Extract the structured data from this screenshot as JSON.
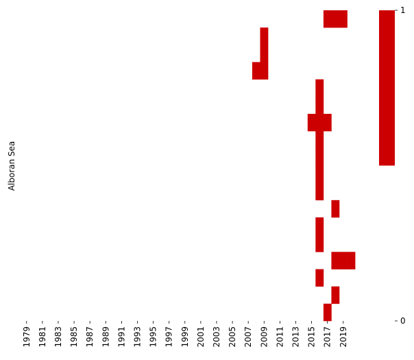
{
  "chart_data": {
    "type": "heatmap",
    "title": "",
    "xlabel": "",
    "ylabel": "Alboran Sea",
    "x_start_year": 1979,
    "x_end_year": 2020,
    "xtick_labels": [
      "1979",
      "1981",
      "1983",
      "1985",
      "1987",
      "1989",
      "1991",
      "1993",
      "1995",
      "1997",
      "1999",
      "2001",
      "2003",
      "2005",
      "2007",
      "2009",
      "2011",
      "2013",
      "2015",
      "2017",
      "2019"
    ],
    "n_rows": 18,
    "values_description": "binary presence (1 = present, 0 = absent)",
    "cells": [
      {
        "row": 0,
        "years": [
          2017,
          2018,
          2019
        ]
      },
      {
        "row": 1,
        "years": [
          2009
        ]
      },
      {
        "row": 2,
        "years": [
          2009
        ]
      },
      {
        "row": 3,
        "years": [
          2008,
          2009
        ]
      },
      {
        "row": 4,
        "years": [
          2016
        ]
      },
      {
        "row": 5,
        "years": [
          2016
        ]
      },
      {
        "row": 6,
        "years": [
          2015,
          2016,
          2017
        ]
      },
      {
        "row": 7,
        "years": [
          2016
        ]
      },
      {
        "row": 8,
        "years": [
          2016
        ]
      },
      {
        "row": 9,
        "years": [
          2016
        ]
      },
      {
        "row": 10,
        "years": [
          2016
        ]
      },
      {
        "row": 11,
        "years": [
          2018
        ]
      },
      {
        "row": 12,
        "years": [
          2016
        ]
      },
      {
        "row": 13,
        "years": [
          2016
        ]
      },
      {
        "row": 14,
        "years": [
          2018,
          2019,
          2020
        ]
      },
      {
        "row": 15,
        "years": [
          2016
        ]
      },
      {
        "row": 16,
        "years": [
          2018
        ]
      },
      {
        "row": 17,
        "years": [
          2017
        ]
      }
    ],
    "colorbar": {
      "ticks": [
        {
          "value": 1,
          "label": "1"
        },
        {
          "value": 0,
          "label": "0"
        }
      ],
      "range": [
        0,
        1
      ],
      "filled_fraction": 0.5,
      "color_high": "#cc0000",
      "color_low": "#ffffff"
    },
    "cell_color": "#cc0000",
    "grid": false,
    "legend": "colorbar-right"
  }
}
